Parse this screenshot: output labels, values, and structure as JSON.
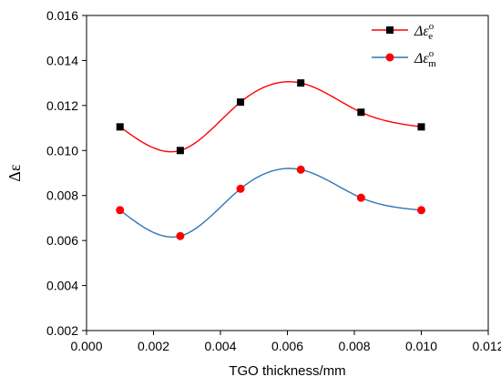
{
  "chart_data": {
    "type": "line",
    "xlabel": "TGO thickness/mm",
    "ylabel": "Δε",
    "xlim": [
      0.0,
      0.012
    ],
    "ylim": [
      0.002,
      0.016
    ],
    "x_ticks": [
      "0.000",
      "0.002",
      "0.004",
      "0.006",
      "0.008",
      "0.010",
      "0.012"
    ],
    "y_ticks": [
      "0.002",
      "0.004",
      "0.006",
      "0.008",
      "0.010",
      "0.012",
      "0.014",
      "0.016"
    ],
    "legend_position": "top-right",
    "series": [
      {
        "legend": {
          "base": "Δε",
          "sup": "o",
          "sub": "e"
        },
        "color": "#ff0000",
        "marker": "square",
        "marker_color": "#000000",
        "x": [
          0.001,
          0.0028,
          0.0046,
          0.0064,
          0.0082,
          0.01
        ],
        "y": [
          0.01105,
          0.01,
          0.01215,
          0.013,
          0.0117,
          0.01105
        ]
      },
      {
        "legend": {
          "base": "Δε",
          "sup": "o",
          "sub": "m"
        },
        "color": "#2e75b6",
        "marker": "circle",
        "marker_color": "#ff0000",
        "x": [
          0.001,
          0.0028,
          0.0046,
          0.0064,
          0.0082,
          0.01
        ],
        "y": [
          0.00735,
          0.0062,
          0.0083,
          0.00915,
          0.0079,
          0.00735
        ]
      }
    ]
  }
}
